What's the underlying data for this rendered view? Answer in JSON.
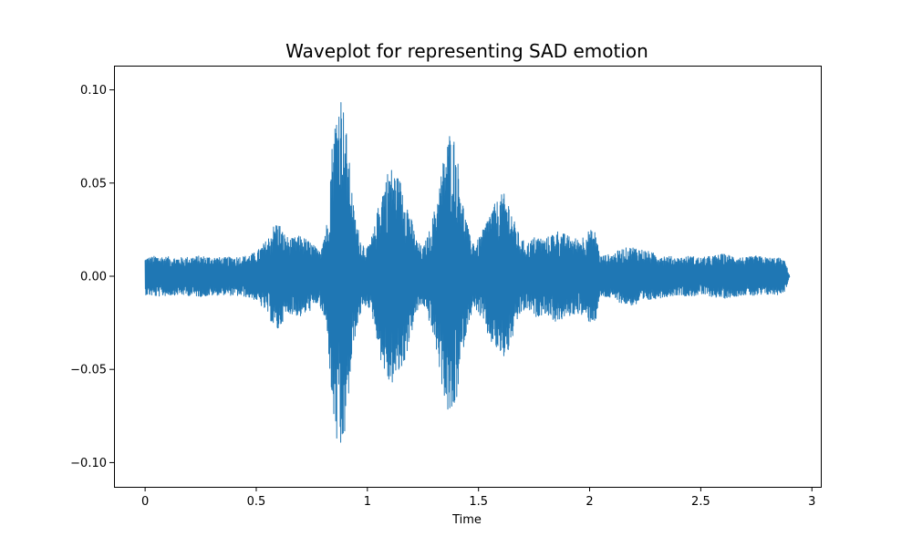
{
  "chart_data": {
    "type": "line",
    "title": "Waveplot for representing SAD emotion",
    "xlabel": "Time",
    "ylabel": "",
    "xlim": [
      -0.14,
      3.04
    ],
    "ylim": [
      -0.113,
      0.113
    ],
    "xticks": [
      0,
      0.5,
      1,
      1.5,
      2,
      2.5,
      3
    ],
    "xtick_labels": [
      "0",
      "0.5",
      "1",
      "1.5",
      "2",
      "2.5",
      "3"
    ],
    "yticks": [
      -0.1,
      -0.05,
      0.0,
      0.05,
      0.1
    ],
    "ytick_labels": [
      "−0.10",
      "−0.05",
      "0.00",
      "0.05",
      "0.10"
    ],
    "grid": false,
    "legend": "none",
    "duration": 2.9,
    "series": [
      {
        "color": "#1f77b4",
        "envelope": {
          "t": [
            0.0,
            0.05,
            0.15,
            0.25,
            0.35,
            0.45,
            0.5,
            0.55,
            0.58,
            0.6,
            0.62,
            0.65,
            0.7,
            0.75,
            0.78,
            0.82,
            0.84,
            0.86,
            0.88,
            0.9,
            0.92,
            0.94,
            0.97,
            1.0,
            1.03,
            1.06,
            1.1,
            1.13,
            1.16,
            1.19,
            1.22,
            1.25,
            1.28,
            1.31,
            1.34,
            1.37,
            1.39,
            1.41,
            1.43,
            1.46,
            1.49,
            1.52,
            1.55,
            1.58,
            1.61,
            1.64,
            1.66,
            1.69,
            1.72,
            1.76,
            1.8,
            1.85,
            1.9,
            1.95,
            2.0,
            2.03,
            2.04,
            2.05,
            2.1,
            2.15,
            2.2,
            2.25,
            2.3,
            2.35,
            2.4,
            2.45,
            2.5,
            2.55,
            2.6,
            2.65,
            2.7,
            2.75,
            2.8,
            2.85,
            2.88,
            2.9
          ],
          "amplitude": [
            0.01,
            0.011,
            0.01,
            0.011,
            0.01,
            0.011,
            0.013,
            0.02,
            0.028,
            0.03,
            0.024,
            0.02,
            0.022,
            0.018,
            0.014,
            0.03,
            0.07,
            0.09,
            0.1,
            0.085,
            0.06,
            0.035,
            0.02,
            0.015,
            0.025,
            0.045,
            0.06,
            0.055,
            0.05,
            0.035,
            0.02,
            0.015,
            0.025,
            0.04,
            0.062,
            0.078,
            0.075,
            0.06,
            0.04,
            0.022,
            0.018,
            0.025,
            0.035,
            0.04,
            0.045,
            0.04,
            0.03,
            0.02,
            0.018,
            0.022,
            0.02,
            0.025,
            0.022,
            0.02,
            0.025,
            0.024,
            0.015,
            0.011,
            0.012,
            0.015,
            0.016,
            0.014,
            0.012,
            0.011,
            0.01,
            0.011,
            0.01,
            0.011,
            0.012,
            0.011,
            0.01,
            0.011,
            0.01,
            0.01,
            0.008,
            0.0
          ]
        }
      }
    ]
  }
}
